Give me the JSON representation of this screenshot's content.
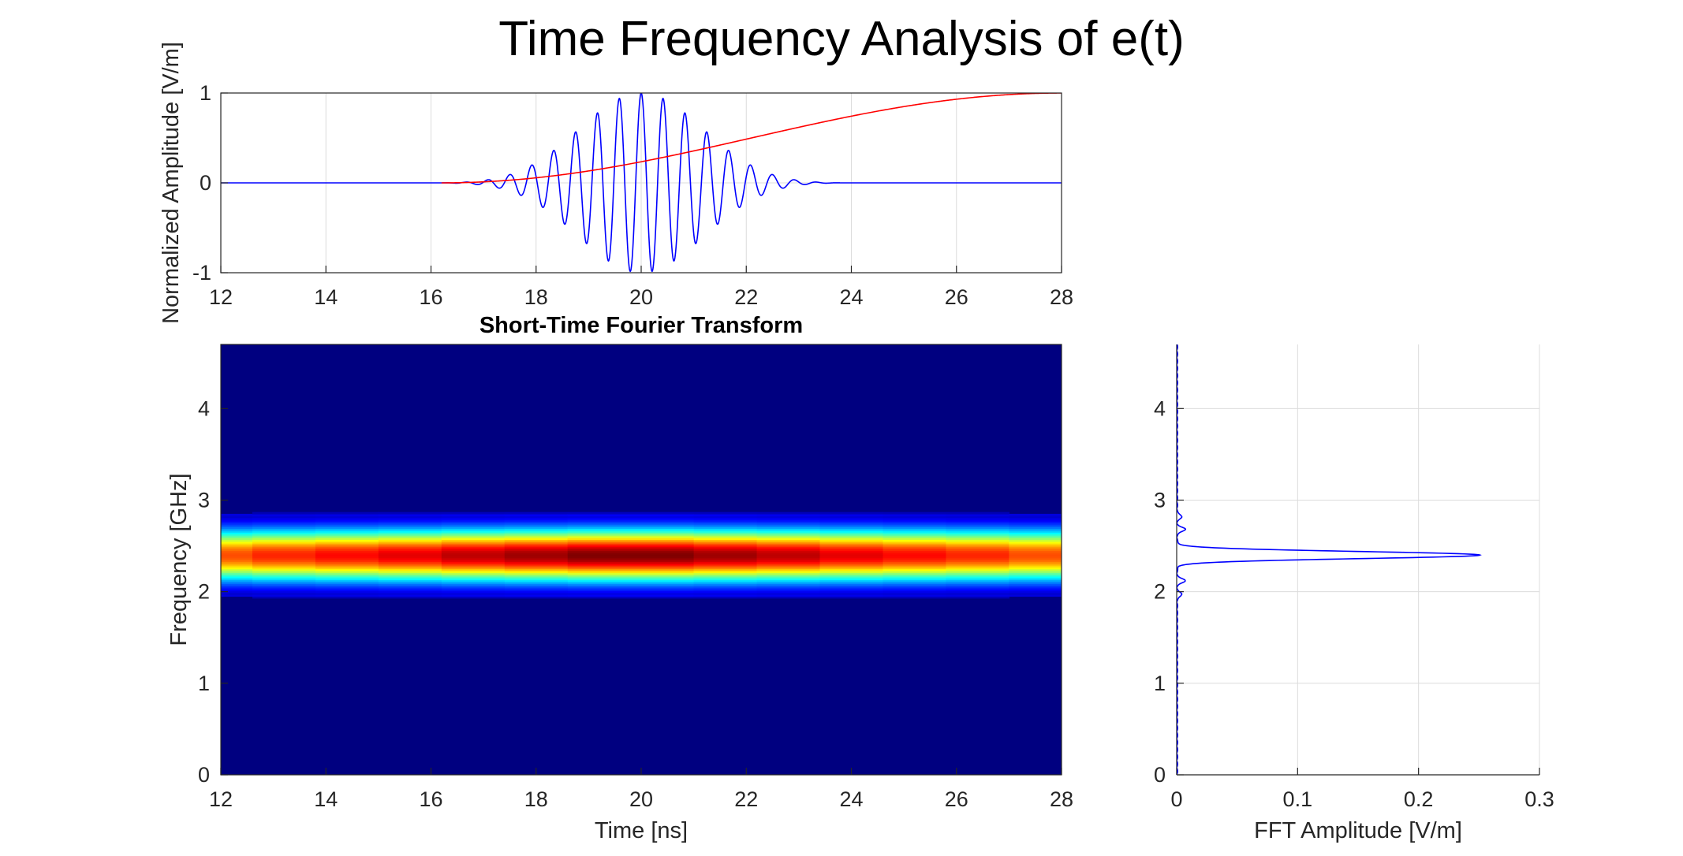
{
  "figure": {
    "title": "Time Frequency Analysis of e(t)"
  },
  "chart_data": [
    {
      "name": "signal",
      "type": "line",
      "title": "",
      "xlabel": "",
      "ylabel": "Normalized Amplitude [V/m]",
      "xlim": [
        12,
        28
      ],
      "ylim": [
        -1,
        1
      ],
      "xticks": [
        "12",
        "14",
        "16",
        "18",
        "20",
        "22",
        "24",
        "26",
        "28"
      ],
      "yticks": [
        "-1",
        "0",
        "1"
      ],
      "grid": true,
      "colors": {
        "waveform": "#0000ff",
        "envelope": "#ff0000"
      },
      "series": [
        {
          "style": "oscillation",
          "center": 20,
          "carrier_ghz": 2.4,
          "nonzero_range": [
            16.2,
            23.8
          ],
          "peak": 1.0
        },
        {
          "style": "rising-sigmoid",
          "x": [
            16.2,
            18,
            20,
            22,
            24,
            26,
            28
          ],
          "values": [
            0.0,
            0.08,
            0.27,
            0.5,
            0.73,
            0.92,
            1.0
          ]
        }
      ]
    },
    {
      "name": "stft",
      "type": "heatmap",
      "title": "Short-Time Fourier Transform",
      "xlabel": "Time [ns]",
      "ylabel": "Frequency [GHz]",
      "xlim": [
        12,
        28
      ],
      "ylim": [
        0,
        4.7
      ],
      "xticks": [
        "12",
        "14",
        "16",
        "18",
        "20",
        "22",
        "24",
        "26",
        "28"
      ],
      "yticks": [
        "0",
        "1",
        "2",
        "3",
        "4"
      ],
      "colormap": "jet",
      "band_center_ghz": 2.4,
      "band_halfwidth_ghz": 0.55,
      "time_segments": [
        12,
        12.6,
        13.8,
        15.0,
        16.2,
        17.4,
        18.6,
        21.0,
        22.2,
        23.4,
        24.6,
        25.8,
        27.0,
        28
      ],
      "segment_peaks": [
        0.8,
        0.84,
        0.87,
        0.9,
        0.94,
        0.97,
        1.0,
        0.97,
        0.94,
        0.9,
        0.87,
        0.84,
        0.8
      ]
    },
    {
      "name": "spectrum",
      "type": "line",
      "title": "",
      "xlabel": "FFT Amplitude [V/m]",
      "ylabel": "",
      "xlim": [
        0,
        0.3
      ],
      "ylim": [
        0,
        4.7
      ],
      "xticks": [
        "0",
        "0.1",
        "0.2",
        "0.3"
      ],
      "yticks": [
        "0",
        "1",
        "2",
        "3",
        "4"
      ],
      "grid": true,
      "colors": {
        "line": "#0000ff"
      },
      "peak": {
        "frequency_ghz": 2.4,
        "amplitude": 0.25
      },
      "sidelobes": [
        {
          "frequency_ghz": 2.12,
          "amplitude": 0.007
        },
        {
          "frequency_ghz": 2.68,
          "amplitude": 0.007
        },
        {
          "frequency_ghz": 2.82,
          "amplitude": 0.004
        },
        {
          "frequency_ghz": 1.97,
          "amplitude": 0.004
        }
      ]
    }
  ]
}
